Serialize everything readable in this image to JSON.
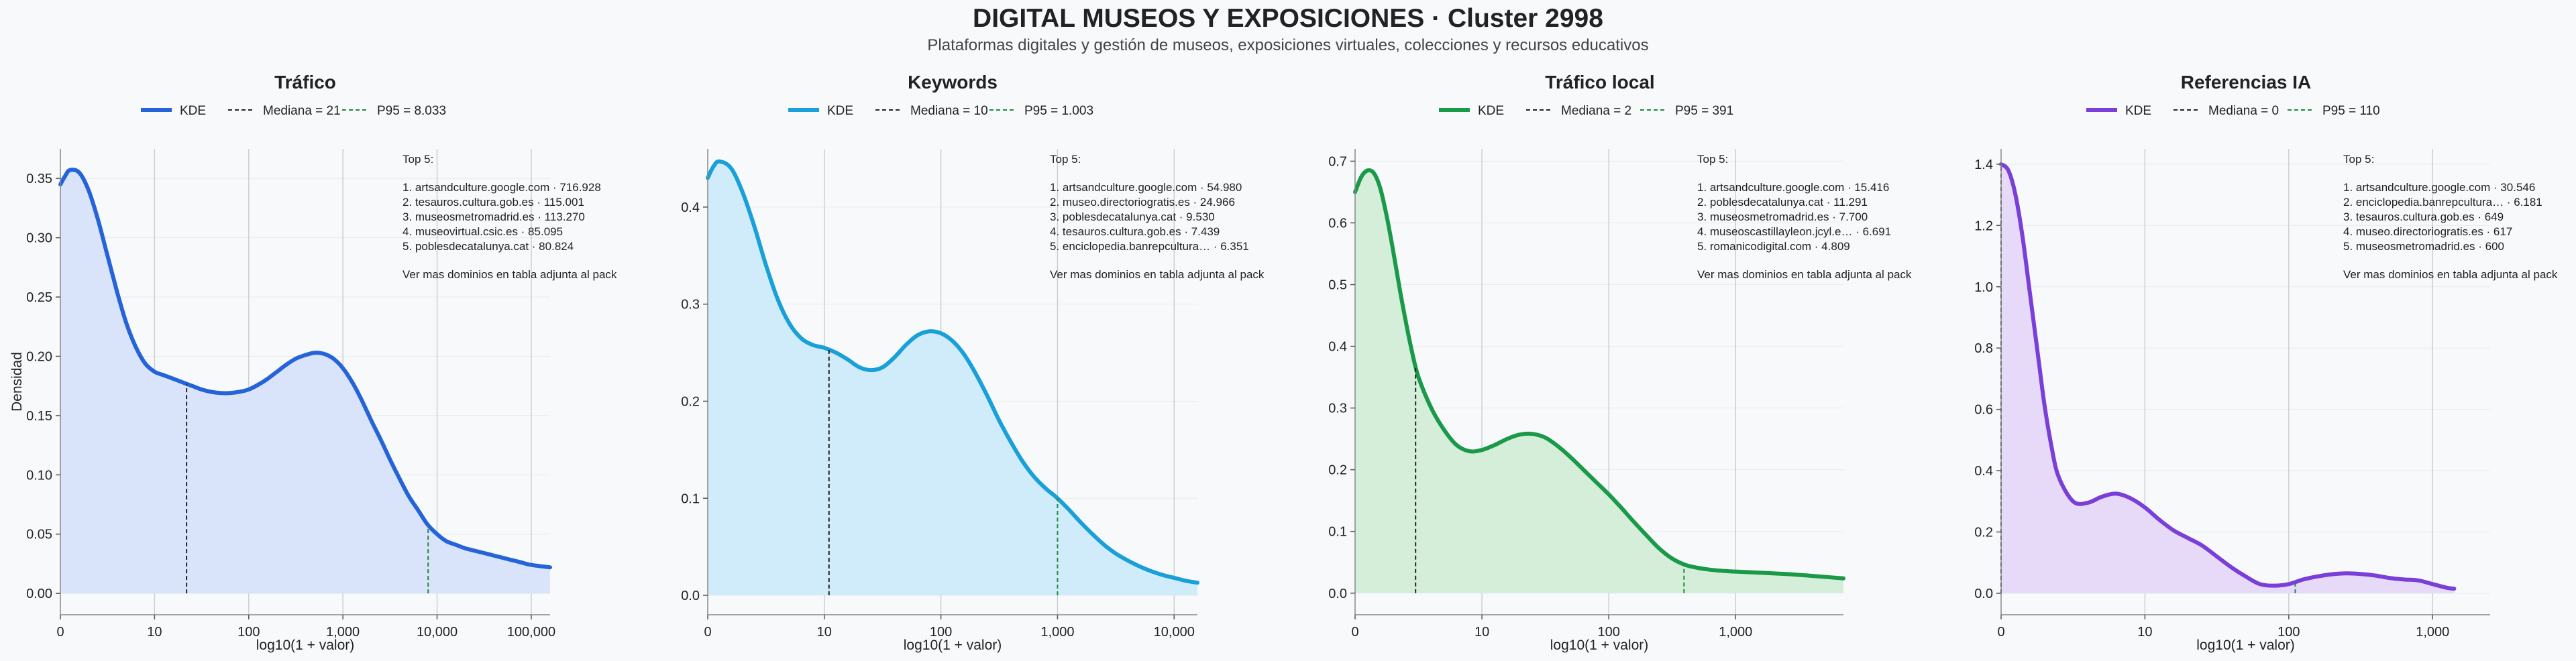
{
  "title": "DIGITAL MUSEOS Y EXPOSICIONES · Cluster 2998",
  "subtitle": "Plataformas digitales y gestión de museos, exposiciones virtuales, colecciones y recursos educativos",
  "chart_data": [
    {
      "type": "area",
      "title": "Tráfico",
      "color": "#2563d9",
      "fill": "#d9e3f9",
      "xlabel": "log10(1 + valor)",
      "ylabel": "Densidad",
      "xlim": [
        0,
        5.2
      ],
      "ylim": [
        -0.018,
        0.375
      ],
      "xticks": [
        {
          "v": 0,
          "label": "0"
        },
        {
          "v": 1,
          "label": "10"
        },
        {
          "v": 2,
          "label": "100"
        },
        {
          "v": 3,
          "label": "1,000"
        },
        {
          "v": 4,
          "label": "10,000"
        },
        {
          "v": 5,
          "label": "100,000"
        }
      ],
      "yticks": [
        {
          "v": 0,
          "label": "0.00"
        },
        {
          "v": 0.05,
          "label": "0.05"
        },
        {
          "v": 0.1,
          "label": "0.10"
        },
        {
          "v": 0.15,
          "label": "0.15"
        },
        {
          "v": 0.2,
          "label": "0.20"
        },
        {
          "v": 0.25,
          "label": "0.25"
        },
        {
          "v": 0.3,
          "label": "0.30"
        },
        {
          "v": 0.35,
          "label": "0.35"
        }
      ],
      "kde": {
        "x": [
          0,
          0.05,
          0.1,
          0.2,
          0.3,
          0.4,
          0.5,
          0.6,
          0.7,
          0.8,
          0.9,
          1.0,
          1.1,
          1.2,
          1.3,
          1.4,
          1.5,
          1.6,
          1.7,
          1.8,
          1.9,
          2.0,
          2.1,
          2.2,
          2.3,
          2.4,
          2.5,
          2.6,
          2.7,
          2.8,
          2.9,
          3.0,
          3.1,
          3.2,
          3.3,
          3.4,
          3.5,
          3.6,
          3.7,
          3.8,
          3.9,
          4.0,
          4.1,
          4.2,
          4.3,
          4.4,
          4.5,
          4.6,
          4.7,
          4.8,
          4.9,
          5.0,
          5.2
        ],
        "y": [
          0.345,
          0.352,
          0.357,
          0.355,
          0.34,
          0.315,
          0.285,
          0.255,
          0.228,
          0.208,
          0.194,
          0.187,
          0.184,
          0.181,
          0.178,
          0.175,
          0.172,
          0.17,
          0.169,
          0.169,
          0.17,
          0.172,
          0.176,
          0.181,
          0.187,
          0.193,
          0.198,
          0.201,
          0.203,
          0.202,
          0.198,
          0.19,
          0.178,
          0.163,
          0.146,
          0.13,
          0.113,
          0.097,
          0.082,
          0.07,
          0.058,
          0.05,
          0.044,
          0.041,
          0.038,
          0.036,
          0.034,
          0.032,
          0.03,
          0.028,
          0.026,
          0.024,
          0.022
        ]
      },
      "stats": {
        "median": {
          "x": 1.34,
          "label": "Mediana = 21"
        },
        "p95": {
          "x": 3.905,
          "label": "P95 = 8.033"
        }
      },
      "legend": {
        "kde": "KDE",
        "median": "Mediana = 21",
        "p95": "P95 = 8.033"
      },
      "top5": {
        "header": "Top 5:",
        "items": [
          "1. artsandculture.google.com · 716.928",
          "2. tesauros.cultura.gob.es · 115.001",
          "3. museosmetromadrid.es · 113.270",
          "4. museovirtual.csic.es · 85.095",
          "5. poblesdecatalunya.cat · 80.824"
        ],
        "footer": "Ver mas dominios en tabla adjunta al pack"
      }
    },
    {
      "type": "area",
      "title": "Keywords",
      "color": "#19a0d8",
      "fill": "#d0ecfa",
      "xlabel": "log10(1 + valor)",
      "ylabel": "",
      "xlim": [
        0,
        4.2
      ],
      "ylim": [
        -0.02,
        0.46
      ],
      "xticks": [
        {
          "v": 0,
          "label": "0"
        },
        {
          "v": 1,
          "label": "10"
        },
        {
          "v": 2,
          "label": "100"
        },
        {
          "v": 3,
          "label": "1,000"
        },
        {
          "v": 4,
          "label": "10,000"
        }
      ],
      "yticks": [
        {
          "v": 0,
          "label": "0.0"
        },
        {
          "v": 0.1,
          "label": "0.1"
        },
        {
          "v": 0.2,
          "label": "0.2"
        },
        {
          "v": 0.3,
          "label": "0.3"
        },
        {
          "v": 0.4,
          "label": "0.4"
        }
      ],
      "kde": {
        "x": [
          0,
          0.05,
          0.1,
          0.2,
          0.3,
          0.4,
          0.5,
          0.6,
          0.7,
          0.8,
          0.9,
          1.0,
          1.1,
          1.2,
          1.3,
          1.4,
          1.5,
          1.6,
          1.7,
          1.8,
          1.9,
          2.0,
          2.1,
          2.2,
          2.3,
          2.4,
          2.5,
          2.6,
          2.7,
          2.8,
          2.9,
          3.0,
          3.1,
          3.2,
          3.3,
          3.4,
          3.5,
          3.6,
          3.7,
          3.8,
          3.9,
          4.0,
          4.1,
          4.2
        ],
        "y": [
          0.43,
          0.442,
          0.447,
          0.44,
          0.415,
          0.38,
          0.34,
          0.305,
          0.28,
          0.265,
          0.258,
          0.255,
          0.25,
          0.243,
          0.235,
          0.232,
          0.235,
          0.245,
          0.258,
          0.268,
          0.272,
          0.27,
          0.262,
          0.248,
          0.228,
          0.205,
          0.18,
          0.158,
          0.138,
          0.122,
          0.11,
          0.1,
          0.088,
          0.075,
          0.063,
          0.052,
          0.043,
          0.036,
          0.03,
          0.025,
          0.021,
          0.018,
          0.015,
          0.013
        ]
      },
      "stats": {
        "median": {
          "x": 1.04,
          "label": "Mediana = 10"
        },
        "p95": {
          "x": 3.0,
          "label": "P95 = 1.003"
        }
      },
      "legend": {
        "kde": "KDE",
        "median": "Mediana = 10",
        "p95": "P95 = 1.003"
      },
      "top5": {
        "header": "Top 5:",
        "items": [
          "1. artsandculture.google.com · 54.980",
          "2. museo.directoriogratis.es · 24.966",
          "3. poblesdecatalunya.cat · 9.530",
          "4. tesauros.cultura.gob.es · 7.439",
          "5. enciclopedia.banrepcultura… · 6.351"
        ],
        "footer": "Ver mas dominios en tabla adjunta al pack"
      }
    },
    {
      "type": "area",
      "title": "Tráfico local",
      "color": "#1a9a48",
      "fill": "#d4eed9",
      "xlabel": "log10(1 + valor)",
      "ylabel": "",
      "xlim": [
        0,
        3.85
      ],
      "ylim": [
        -0.035,
        0.72
      ],
      "xticks": [
        {
          "v": 0,
          "label": "0"
        },
        {
          "v": 1,
          "label": "10"
        },
        {
          "v": 2,
          "label": "100"
        },
        {
          "v": 3,
          "label": "1,000"
        }
      ],
      "yticks": [
        {
          "v": 0,
          "label": "0.0"
        },
        {
          "v": 0.1,
          "label": "0.1"
        },
        {
          "v": 0.2,
          "label": "0.2"
        },
        {
          "v": 0.3,
          "label": "0.3"
        },
        {
          "v": 0.4,
          "label": "0.4"
        },
        {
          "v": 0.5,
          "label": "0.5"
        },
        {
          "v": 0.6,
          "label": "0.6"
        },
        {
          "v": 0.7,
          "label": "0.7"
        }
      ],
      "kde": {
        "x": [
          0,
          0.05,
          0.1,
          0.15,
          0.2,
          0.25,
          0.3,
          0.35,
          0.4,
          0.45,
          0.5,
          0.6,
          0.7,
          0.8,
          0.9,
          1.0,
          1.1,
          1.2,
          1.3,
          1.4,
          1.5,
          1.6,
          1.7,
          1.8,
          1.9,
          2.0,
          2.1,
          2.2,
          2.3,
          2.4,
          2.5,
          2.6,
          2.7,
          2.8,
          2.9,
          3.0,
          3.2,
          3.4,
          3.6,
          3.85
        ],
        "y": [
          0.65,
          0.675,
          0.685,
          0.68,
          0.655,
          0.61,
          0.555,
          0.495,
          0.44,
          0.39,
          0.35,
          0.3,
          0.265,
          0.24,
          0.23,
          0.232,
          0.24,
          0.25,
          0.257,
          0.258,
          0.252,
          0.238,
          0.22,
          0.2,
          0.18,
          0.16,
          0.138,
          0.115,
          0.093,
          0.072,
          0.056,
          0.046,
          0.041,
          0.038,
          0.036,
          0.035,
          0.033,
          0.031,
          0.028,
          0.024
        ]
      },
      "stats": {
        "median": {
          "x": 0.477,
          "label": "Mediana = 2"
        },
        "p95": {
          "x": 2.593,
          "label": "P95 = 391"
        }
      },
      "legend": {
        "kde": "KDE",
        "median": "Mediana = 2",
        "p95": "P95 = 391"
      },
      "top5": {
        "header": "Top 5:",
        "items": [
          "1. artsandculture.google.com · 15.416",
          "2. poblesdecatalunya.cat · 11.291",
          "3. museosmetromadrid.es · 7.700",
          "4. museoscastillayleon.jcyl.e… · 6.691",
          "5. romanicodigital.com · 4.809"
        ],
        "footer": "Ver mas dominios en tabla adjunta al pack"
      }
    },
    {
      "type": "area",
      "title": "Referencias IA",
      "color": "#7b3fd9",
      "fill": "#e7daf9",
      "xlabel": "log10(1 + valor)",
      "ylabel": "",
      "xlim": [
        0,
        3.4
      ],
      "ylim": [
        -0.07,
        1.45
      ],
      "xticks": [
        {
          "v": 0,
          "label": "0"
        },
        {
          "v": 1,
          "label": "10"
        },
        {
          "v": 2,
          "label": "100"
        },
        {
          "v": 3,
          "label": "1,000"
        }
      ],
      "yticks": [
        {
          "v": 0,
          "label": "0.0"
        },
        {
          "v": 0.2,
          "label": "0.2"
        },
        {
          "v": 0.4,
          "label": "0.4"
        },
        {
          "v": 0.6,
          "label": "0.6"
        },
        {
          "v": 0.8,
          "label": "0.8"
        },
        {
          "v": 1.0,
          "label": "1.0"
        },
        {
          "v": 1.2,
          "label": "1.2"
        },
        {
          "v": 1.4,
          "label": "1.4"
        }
      ],
      "kde": {
        "x": [
          0,
          0.05,
          0.1,
          0.15,
          0.2,
          0.25,
          0.3,
          0.35,
          0.4,
          0.5,
          0.6,
          0.7,
          0.8,
          0.9,
          1.0,
          1.1,
          1.2,
          1.3,
          1.4,
          1.5,
          1.6,
          1.7,
          1.8,
          1.9,
          2.0,
          2.1,
          2.2,
          2.3,
          2.4,
          2.5,
          2.6,
          2.7,
          2.8,
          2.9,
          3.0,
          3.1,
          3.15
        ],
        "y": [
          1.4,
          1.38,
          1.3,
          1.16,
          0.98,
          0.8,
          0.62,
          0.48,
          0.38,
          0.3,
          0.295,
          0.315,
          0.325,
          0.31,
          0.28,
          0.24,
          0.205,
          0.18,
          0.155,
          0.12,
          0.085,
          0.055,
          0.03,
          0.025,
          0.03,
          0.045,
          0.055,
          0.062,
          0.065,
          0.063,
          0.058,
          0.05,
          0.045,
          0.042,
          0.03,
          0.018,
          0.015
        ]
      },
      "stats": {
        "median": {
          "x": 0,
          "label": "Mediana = 0"
        },
        "p95": {
          "x": 2.045,
          "label": "P95 = 110"
        }
      },
      "legend": {
        "kde": "KDE",
        "median": "Mediana = 0",
        "p95": "P95 = 110"
      },
      "top5": {
        "header": "Top 5:",
        "items": [
          "1. artsandculture.google.com · 30.546",
          "2. enciclopedia.banrepcultura… · 6.181",
          "3. tesauros.cultura.gob.es · 649",
          "4. museo.directoriogratis.es · 617",
          "5. museosmetromadrid.es · 600"
        ],
        "footer": "Ver mas dominios en tabla adjunta al pack"
      }
    }
  ]
}
